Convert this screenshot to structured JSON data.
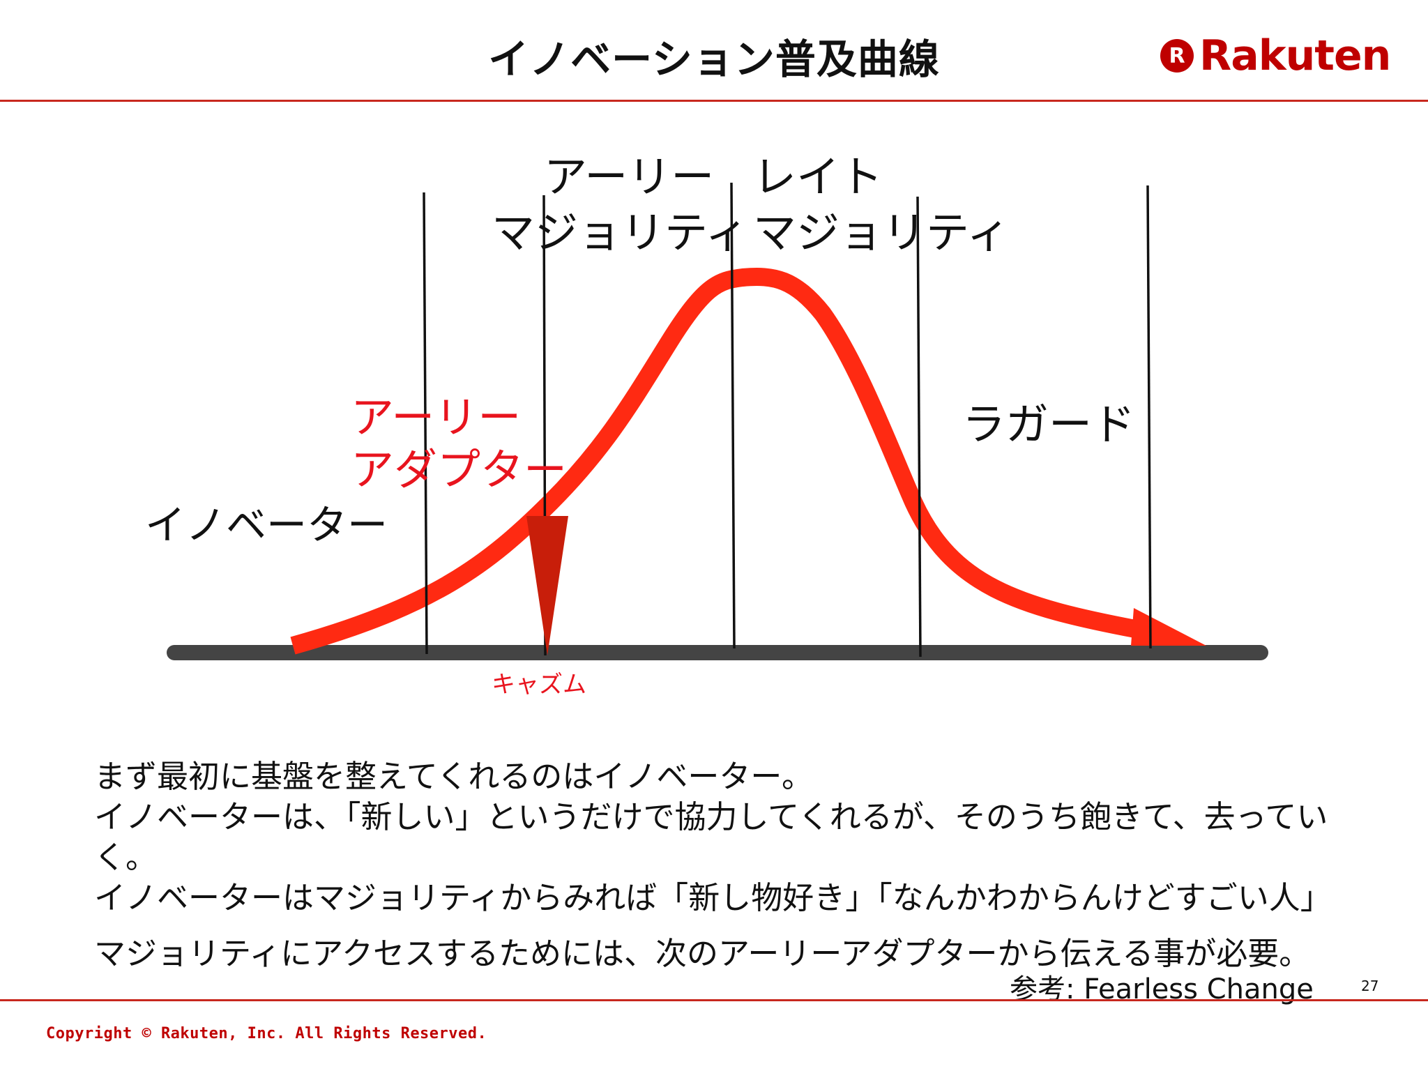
{
  "slide": {
    "title": "イノベーション普及曲線",
    "logo_mark": "R",
    "logo_text": "Rakuten"
  },
  "diagram": {
    "segments": {
      "innovators": "イノベーター",
      "early_adopters": [
        "アーリー",
        "アダプター"
      ],
      "early_majority": [
        "アーリー",
        "マジョリティ"
      ],
      "late_majority": [
        "レイト",
        "マジョリティ"
      ],
      "laggards": "ラガード"
    },
    "chasm_label": "キャズム",
    "colors": {
      "curve": "#ff2a12",
      "chasm_arrow": "#c81e0a",
      "baseline": "#444444",
      "highlight_text": "#e8141e"
    }
  },
  "notes": [
    "まず最初に基盤を整えてくれるのはイノベーター。",
    "イノベーターは、「新しい」というだけで協力してくれるが、そのうち飽きて、去っていく。",
    "イノベーターはマジョリティからみれば「新し物好き」「なんかわからんけどすごい人」",
    "マジョリティにアクセスするためには、次のアーリーアダプターから伝える事が必要。"
  ],
  "reference": "参考: Fearless Change",
  "page_number": "27",
  "copyright": "Copyright © Rakuten, Inc. All Rights Reserved."
}
